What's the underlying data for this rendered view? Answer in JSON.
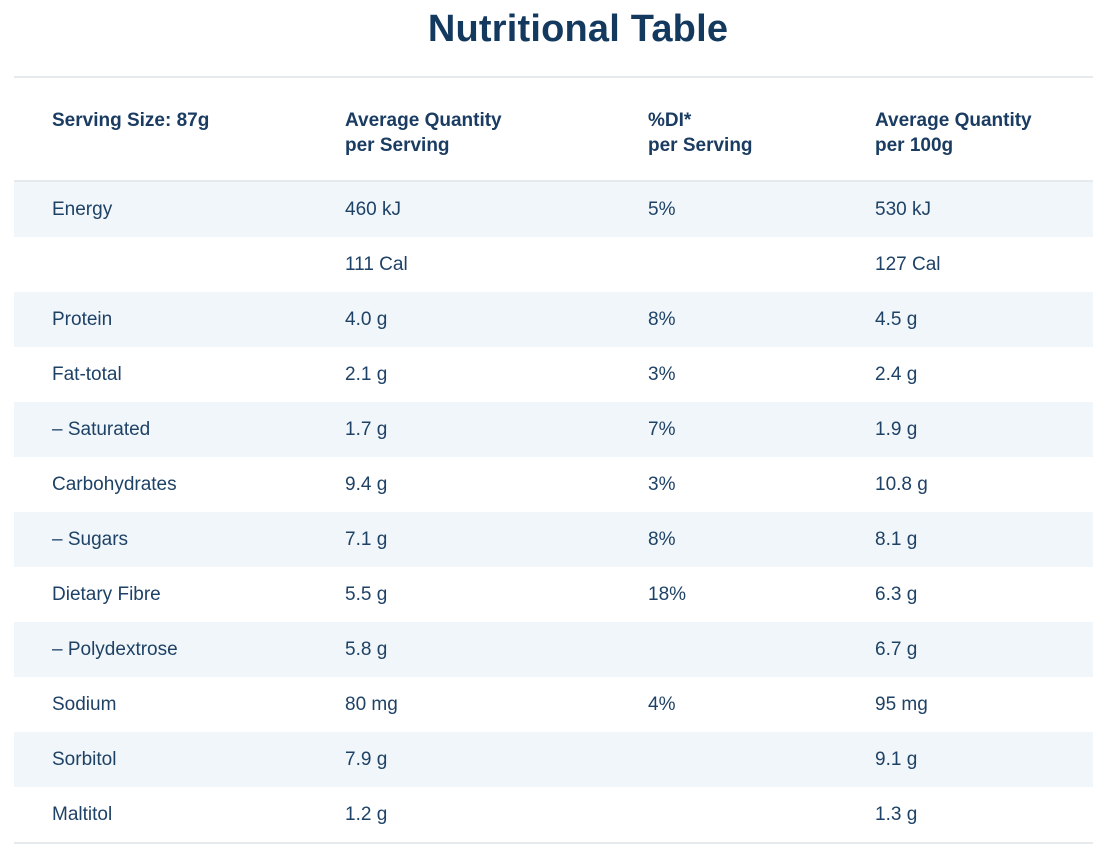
{
  "title": "Nutritional Table",
  "table": {
    "headers": [
      {
        "line1": "Serving Size: 87g",
        "line2": ""
      },
      {
        "line1": "Average Quantity",
        "line2": "per Serving"
      },
      {
        "line1": "%DI*",
        "line2": "per Serving"
      },
      {
        "line1": "Average Quantity",
        "line2": "per 100g"
      }
    ],
    "rows": [
      {
        "nutrient": "Energy",
        "per_serving": "460 kJ",
        "di_per_serving": "5%",
        "per_100g": "530 kJ"
      },
      {
        "nutrient": "",
        "per_serving": "111 Cal",
        "di_per_serving": "",
        "per_100g": "127 Cal"
      },
      {
        "nutrient": "Protein",
        "per_serving": "4.0 g",
        "di_per_serving": "8%",
        "per_100g": "4.5 g"
      },
      {
        "nutrient": "Fat-total",
        "per_serving": "2.1 g",
        "di_per_serving": "3%",
        "per_100g": "2.4 g"
      },
      {
        "nutrient": "– Saturated",
        "per_serving": "1.7 g",
        "di_per_serving": "7%",
        "per_100g": "1.9 g"
      },
      {
        "nutrient": "Carbohydrates",
        "per_serving": "9.4 g",
        "di_per_serving": "3%",
        "per_100g": "10.8 g"
      },
      {
        "nutrient": "– Sugars",
        "per_serving": "7.1 g",
        "di_per_serving": "8%",
        "per_100g": "8.1 g"
      },
      {
        "nutrient": "Dietary Fibre",
        "per_serving": "5.5 g",
        "di_per_serving": "18%",
        "per_100g": "6.3 g"
      },
      {
        "nutrient": "– Polydextrose",
        "per_serving": "5.8 g",
        "di_per_serving": "",
        "per_100g": "6.7 g"
      },
      {
        "nutrient": "Sodium",
        "per_serving": "80 mg",
        "di_per_serving": "4%",
        "per_100g": "95 mg"
      },
      {
        "nutrient": "Sorbitol",
        "per_serving": "7.9 g",
        "di_per_serving": "",
        "per_100g": "9.1 g"
      },
      {
        "nutrient": "Maltitol",
        "per_serving": "1.2 g",
        "di_per_serving": "",
        "per_100g": "1.3 g"
      }
    ]
  },
  "colors": {
    "title_text": "#14395e",
    "body_text": "#1e4166",
    "stripe_background": "#f0f6f9",
    "divider": "#e7eaec",
    "page_background": "#ffffff"
  }
}
